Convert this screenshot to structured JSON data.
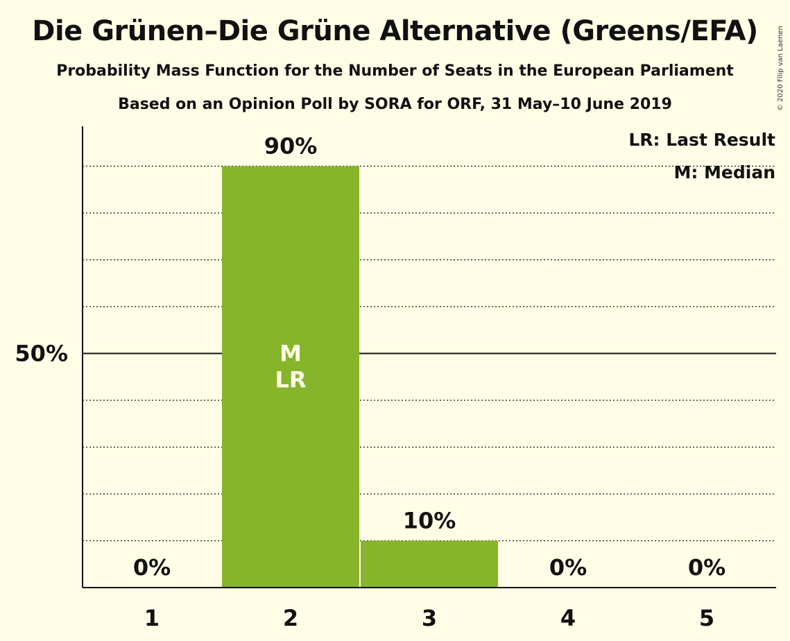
{
  "colors": {
    "background": "#fffde6",
    "bar": "#86b52c",
    "text": "#111111",
    "bar_text": "#fffde6"
  },
  "copyright": "© 2020 Filip van Laenen",
  "chart_data": {
    "type": "bar",
    "title": "Die Grünen–Die Grüne Alternative (Greens/EFA)",
    "subtitle": "Probability Mass Function for the Number of Seats in the European Parliament",
    "subtitle2": "Based on an Opinion Poll by SORA for ORF, 31 May–10 June 2019",
    "categories": [
      "1",
      "2",
      "3",
      "4",
      "5"
    ],
    "values": [
      0,
      90,
      10,
      0,
      0
    ],
    "value_labels": [
      "0%",
      "90%",
      "10%",
      "0%",
      "0%"
    ],
    "ylim": [
      0,
      100
    ],
    "ytick_label": "50%",
    "ytick_value": 50,
    "grid_minor_step": 10,
    "grid": true,
    "bar_annotations": [
      {
        "category": "2",
        "lines": [
          "M",
          "LR"
        ]
      }
    ],
    "legend": {
      "placement": "top-right",
      "entries": [
        "LR: Last Result",
        "M: Median"
      ]
    }
  }
}
